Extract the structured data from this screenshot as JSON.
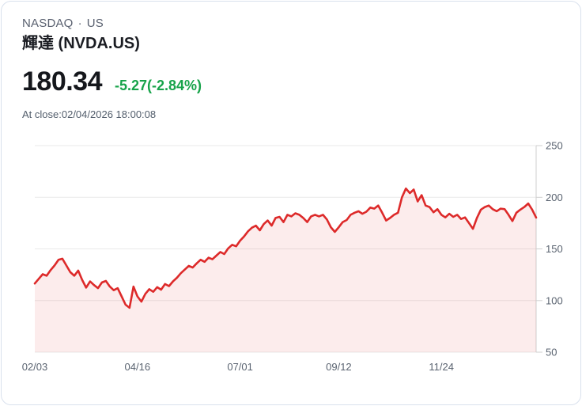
{
  "header": {
    "exchange": "NASDAQ",
    "dot": "·",
    "region": "US",
    "title": "輝達 (NVDA.US)",
    "price": "180.34",
    "change": "-5.27(-2.84%)",
    "at_close": "At close:02/04/2026 18:00:08"
  },
  "colors": {
    "change_green": "#17a34a",
    "title_black": "#1b1d23",
    "muted_gray": "#5a6170"
  },
  "chart_data": {
    "type": "area",
    "title": "NVDA.US 1-year price",
    "xlabel": "",
    "ylabel": "",
    "ylim": [
      50,
      250
    ],
    "grid": true,
    "legend": false,
    "line_color": "#dd2a2a",
    "fill_color": "rgba(221,42,42,0.09)",
    "grid_color": "#e9e9e9",
    "axis_color": "#cfcfcf",
    "y_ticks": [
      50,
      100,
      150,
      200,
      250
    ],
    "x_ticks": [
      {
        "label": "02/03",
        "index": 0
      },
      {
        "label": "04/16",
        "index": 26
      },
      {
        "label": "07/01",
        "index": 52
      },
      {
        "label": "09/12",
        "index": 77
      },
      {
        "label": "11/24",
        "index": 103
      }
    ],
    "values": [
      116.5,
      121,
      125.5,
      124,
      129.5,
      134,
      139.5,
      140.5,
      134,
      127.5,
      124,
      129,
      120,
      112.5,
      118.5,
      115,
      112,
      117.5,
      119,
      113.5,
      110,
      112,
      104,
      96,
      93,
      113.5,
      104,
      99,
      106.5,
      111,
      108.5,
      113,
      110.5,
      116,
      114,
      118.5,
      122,
      126.5,
      130,
      133.5,
      132,
      136,
      139.5,
      137.5,
      141.5,
      140,
      143.5,
      147,
      145,
      150.5,
      154,
      152.5,
      158,
      162,
      167,
      170.5,
      172.5,
      168,
      174,
      177.5,
      172.5,
      180,
      181,
      176,
      183,
      181.5,
      184.5,
      183,
      180,
      176,
      181.5,
      183,
      181.5,
      183,
      178.5,
      171,
      166.5,
      171,
      176,
      178,
      183,
      185,
      186.5,
      184,
      186,
      190,
      189,
      192,
      185,
      177.5,
      180,
      183,
      185,
      200,
      208.5,
      204,
      207.5,
      196,
      202,
      192,
      190.5,
      185.5,
      188.5,
      183,
      180.5,
      184,
      181,
      183,
      179,
      180.5,
      175,
      169.5,
      180,
      188,
      190.5,
      192,
      188.5,
      186.5,
      189,
      188.5,
      183,
      177,
      185,
      188,
      190.5,
      194,
      188,
      180.34
    ]
  }
}
